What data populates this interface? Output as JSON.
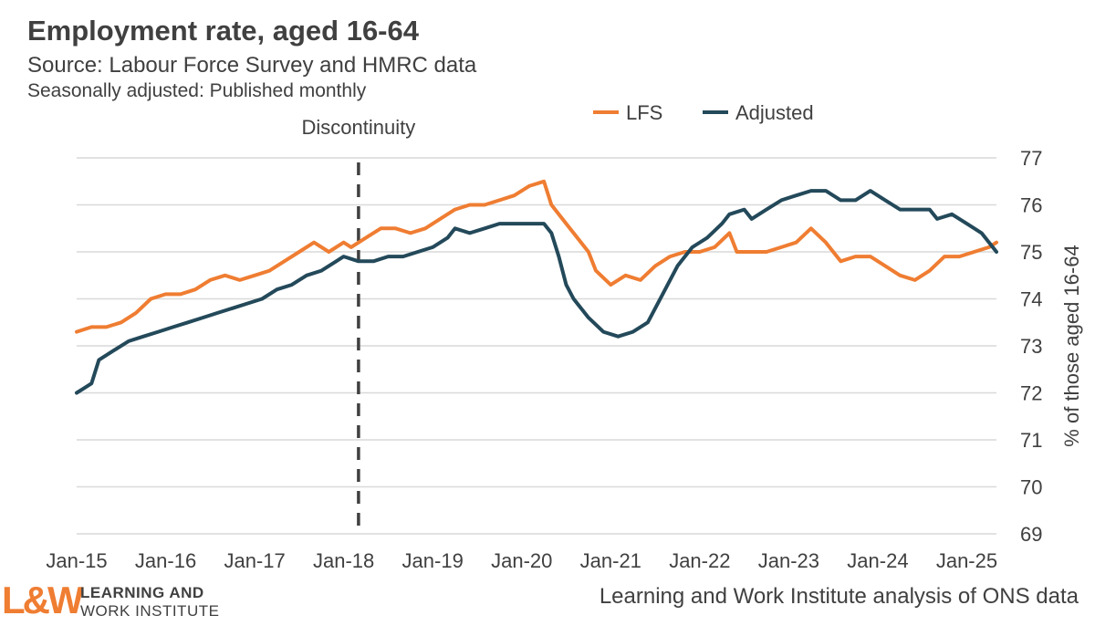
{
  "header": {
    "title": "Employment rate, aged 16-64",
    "subtitle": "Source: Labour Force Survey and HMRC data",
    "subtitle2": "Seasonally adjusted: Published monthly"
  },
  "footer": {
    "logo_mark": "L&W",
    "logo_line1": "LEARNING AND",
    "logo_line2": "WORK INSTITUTE",
    "credit": "Learning and Work Institute analysis of ONS data"
  },
  "colors": {
    "lfs": "#ef7d32",
    "adjusted": "#23495a",
    "grid": "#d9d9d9",
    "text": "#404040"
  },
  "chart_data": {
    "type": "line",
    "title": "Employment rate, aged 16-64",
    "ylabel": "% of those aged 16-64",
    "ylim": [
      69,
      77
    ],
    "yticks": [
      69,
      70,
      71,
      72,
      73,
      74,
      75,
      76,
      77
    ],
    "y_axis_position": "right",
    "grid": true,
    "legend_position": "top-right",
    "xlim": [
      "2015-01",
      "2025-05"
    ],
    "x_tick_labels": [
      "Jan-15",
      "Jan-16",
      "Jan-17",
      "Jan-18",
      "Jan-19",
      "Jan-20",
      "Jan-21",
      "Jan-22",
      "Jan-23",
      "Jan-24",
      "Jan-25"
    ],
    "x_tick_dates": [
      "2015-01",
      "2016-01",
      "2017-01",
      "2018-01",
      "2019-01",
      "2020-01",
      "2021-01",
      "2022-01",
      "2023-01",
      "2024-01",
      "2025-01"
    ],
    "annotation": {
      "label": "Discontinuity",
      "x": "2018-03",
      "style": "dashed-vertical"
    },
    "series": [
      {
        "name": "LFS",
        "color": "#ef7d32",
        "points": [
          [
            "2015-01",
            73.3
          ],
          [
            "2015-03",
            73.4
          ],
          [
            "2015-05",
            73.4
          ],
          [
            "2015-07",
            73.5
          ],
          [
            "2015-09",
            73.7
          ],
          [
            "2015-11",
            74.0
          ],
          [
            "2016-01",
            74.1
          ],
          [
            "2016-03",
            74.1
          ],
          [
            "2016-05",
            74.2
          ],
          [
            "2016-07",
            74.4
          ],
          [
            "2016-09",
            74.5
          ],
          [
            "2016-11",
            74.4
          ],
          [
            "2017-01",
            74.5
          ],
          [
            "2017-03",
            74.6
          ],
          [
            "2017-05",
            74.8
          ],
          [
            "2017-07",
            75.0
          ],
          [
            "2017-09",
            75.2
          ],
          [
            "2017-11",
            75.0
          ],
          [
            "2018-01",
            75.2
          ],
          [
            "2018-02",
            75.1
          ],
          [
            "2018-04",
            75.3
          ],
          [
            "2018-06",
            75.5
          ],
          [
            "2018-08",
            75.5
          ],
          [
            "2018-10",
            75.4
          ],
          [
            "2018-12",
            75.5
          ],
          [
            "2019-02",
            75.7
          ],
          [
            "2019-04",
            75.9
          ],
          [
            "2019-06",
            76.0
          ],
          [
            "2019-08",
            76.0
          ],
          [
            "2019-10",
            76.1
          ],
          [
            "2019-12",
            76.2
          ],
          [
            "2020-02",
            76.4
          ],
          [
            "2020-04",
            76.5
          ],
          [
            "2020-05",
            76.0
          ],
          [
            "2020-07",
            75.6
          ],
          [
            "2020-08",
            75.4
          ],
          [
            "2020-10",
            75.0
          ],
          [
            "2020-11",
            74.6
          ],
          [
            "2021-01",
            74.3
          ],
          [
            "2021-03",
            74.5
          ],
          [
            "2021-05",
            74.4
          ],
          [
            "2021-07",
            74.7
          ],
          [
            "2021-09",
            74.9
          ],
          [
            "2021-11",
            75.0
          ],
          [
            "2022-01",
            75.0
          ],
          [
            "2022-03",
            75.1
          ],
          [
            "2022-05",
            75.4
          ],
          [
            "2022-06",
            75.0
          ],
          [
            "2022-08",
            75.0
          ],
          [
            "2022-10",
            75.0
          ],
          [
            "2022-12",
            75.1
          ],
          [
            "2023-02",
            75.2
          ],
          [
            "2023-04",
            75.5
          ],
          [
            "2023-06",
            75.2
          ],
          [
            "2023-08",
            74.8
          ],
          [
            "2023-10",
            74.9
          ],
          [
            "2023-12",
            74.9
          ],
          [
            "2024-02",
            74.7
          ],
          [
            "2024-04",
            74.5
          ],
          [
            "2024-06",
            74.4
          ],
          [
            "2024-08",
            74.6
          ],
          [
            "2024-10",
            74.9
          ],
          [
            "2024-12",
            74.9
          ],
          [
            "2025-02",
            75.0
          ],
          [
            "2025-04",
            75.1
          ],
          [
            "2025-05",
            75.2
          ]
        ]
      },
      {
        "name": "Adjusted",
        "color": "#23495a",
        "points": [
          [
            "2015-01",
            72.0
          ],
          [
            "2015-02",
            72.1
          ],
          [
            "2015-03",
            72.2
          ],
          [
            "2015-04",
            72.7
          ],
          [
            "2015-06",
            72.9
          ],
          [
            "2015-08",
            73.1
          ],
          [
            "2015-10",
            73.2
          ],
          [
            "2015-12",
            73.3
          ],
          [
            "2016-02",
            73.4
          ],
          [
            "2016-04",
            73.5
          ],
          [
            "2016-06",
            73.6
          ],
          [
            "2016-08",
            73.7
          ],
          [
            "2016-10",
            73.8
          ],
          [
            "2016-12",
            73.9
          ],
          [
            "2017-02",
            74.0
          ],
          [
            "2017-04",
            74.2
          ],
          [
            "2017-06",
            74.3
          ],
          [
            "2017-08",
            74.5
          ],
          [
            "2017-10",
            74.6
          ],
          [
            "2017-12",
            74.8
          ],
          [
            "2018-01",
            74.9
          ],
          [
            "2018-03",
            74.8
          ],
          [
            "2018-05",
            74.8
          ],
          [
            "2018-07",
            74.9
          ],
          [
            "2018-09",
            74.9
          ],
          [
            "2018-11",
            75.0
          ],
          [
            "2019-01",
            75.1
          ],
          [
            "2019-03",
            75.3
          ],
          [
            "2019-04",
            75.5
          ],
          [
            "2019-06",
            75.4
          ],
          [
            "2019-08",
            75.5
          ],
          [
            "2019-10",
            75.6
          ],
          [
            "2019-12",
            75.6
          ],
          [
            "2020-02",
            75.6
          ],
          [
            "2020-04",
            75.6
          ],
          [
            "2020-05",
            75.4
          ],
          [
            "2020-06",
            74.9
          ],
          [
            "2020-07",
            74.3
          ],
          [
            "2020-08",
            74.0
          ],
          [
            "2020-10",
            73.6
          ],
          [
            "2020-12",
            73.3
          ],
          [
            "2021-02",
            73.2
          ],
          [
            "2021-04",
            73.3
          ],
          [
            "2021-06",
            73.5
          ],
          [
            "2021-08",
            74.1
          ],
          [
            "2021-10",
            74.7
          ],
          [
            "2021-12",
            75.1
          ],
          [
            "2022-02",
            75.3
          ],
          [
            "2022-04",
            75.6
          ],
          [
            "2022-05",
            75.8
          ],
          [
            "2022-07",
            75.9
          ],
          [
            "2022-08",
            75.7
          ],
          [
            "2022-10",
            75.9
          ],
          [
            "2022-12",
            76.1
          ],
          [
            "2023-02",
            76.2
          ],
          [
            "2023-04",
            76.3
          ],
          [
            "2023-06",
            76.3
          ],
          [
            "2023-08",
            76.1
          ],
          [
            "2023-10",
            76.1
          ],
          [
            "2023-12",
            76.3
          ],
          [
            "2024-02",
            76.1
          ],
          [
            "2024-04",
            75.9
          ],
          [
            "2024-06",
            75.9
          ],
          [
            "2024-08",
            75.9
          ],
          [
            "2024-09",
            75.7
          ],
          [
            "2024-11",
            75.8
          ],
          [
            "2025-01",
            75.6
          ],
          [
            "2025-03",
            75.4
          ],
          [
            "2025-05",
            75.0
          ]
        ]
      }
    ]
  }
}
